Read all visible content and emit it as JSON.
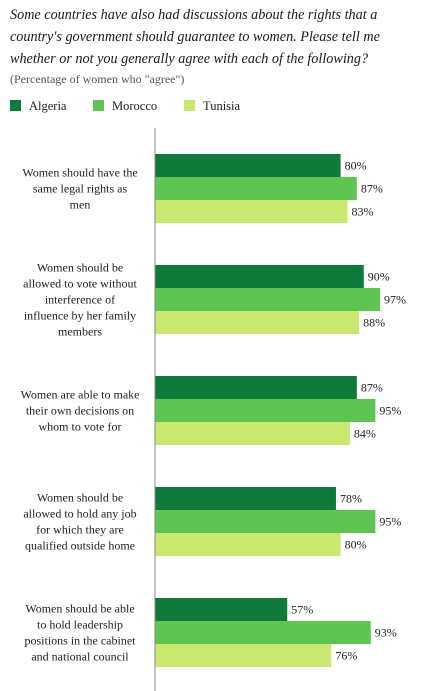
{
  "title": "Some countries have also had discussions about the rights that a country's government should guarantee to women.  Please tell me whether or not you generally agree with each of the following?",
  "subtitle": "(Percentage of women who \"agree\")",
  "colors": {
    "Algeria": "#0f7a3a",
    "Morocco": "#5ec452",
    "Tunisia": "#c9e870",
    "axis": "#888888"
  },
  "chart_data": {
    "type": "bar",
    "orientation": "horizontal",
    "title": "Some countries have also had discussions about the rights that a country's government should guarantee to women.  Please tell me whether or not you generally agree with each of the following?",
    "subtitle": "(Percentage of women who \"agree\")",
    "xlim": [
      0,
      100
    ],
    "legend_position": "top-left",
    "grid": false,
    "categories": [
      [
        "Women should have the",
        "same legal rights as",
        "men"
      ],
      [
        "Women should be",
        "allowed to vote without",
        "interference of",
        "influence by her family",
        "members"
      ],
      [
        "Women are able to make",
        "their own decisions on",
        "whom to vote for"
      ],
      [
        "Women should be",
        "allowed to hold any job",
        "for which they are",
        "qualified outside home"
      ],
      [
        "Women should be able",
        "to hold leadership",
        "positions in the cabinet",
        "and national council"
      ]
    ],
    "series": [
      {
        "name": "Algeria",
        "values": [
          80,
          90,
          87,
          78,
          57
        ]
      },
      {
        "name": "Morocco",
        "values": [
          87,
          97,
          95,
          95,
          93
        ]
      },
      {
        "name": "Tunisia",
        "values": [
          83,
          88,
          84,
          80,
          76
        ]
      }
    ],
    "value_suffix": "%"
  }
}
